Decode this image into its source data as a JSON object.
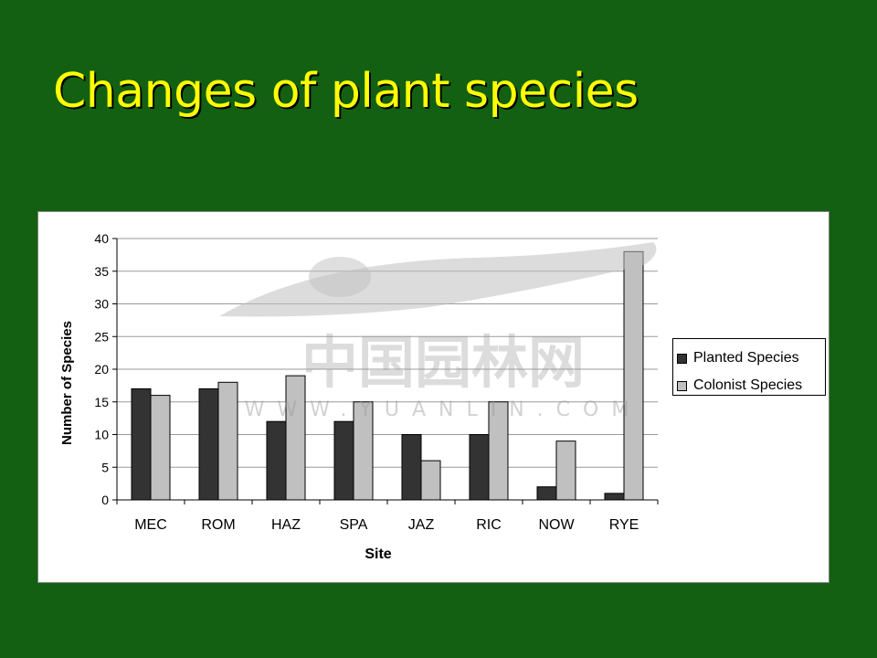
{
  "slide": {
    "title": "Changes of plant species",
    "background_color": "#136013",
    "title_color": "#ffff00"
  },
  "watermark": {
    "logo_text": "中国园林网",
    "url_text": "WWW.YUANLIN.COM"
  },
  "chart_data": {
    "type": "bar",
    "title": "",
    "xlabel": "Site",
    "ylabel": "Number of Species",
    "categories": [
      "MEC",
      "ROM",
      "HAZ",
      "SPA",
      "JAZ",
      "RIC",
      "NOW",
      "RYE"
    ],
    "series": [
      {
        "name": "Planted Species",
        "color": "#333333",
        "values": [
          17,
          17,
          12,
          12,
          10,
          10,
          2,
          1
        ]
      },
      {
        "name": "Colonist Species",
        "color": "#c0c0c0",
        "values": [
          16,
          18,
          19,
          15,
          6,
          15,
          9,
          38
        ]
      }
    ],
    "ylim": [
      0,
      40
    ],
    "yticks": [
      0,
      5,
      10,
      15,
      20,
      25,
      30,
      35,
      40
    ],
    "grid": true,
    "legend_position": "right"
  }
}
